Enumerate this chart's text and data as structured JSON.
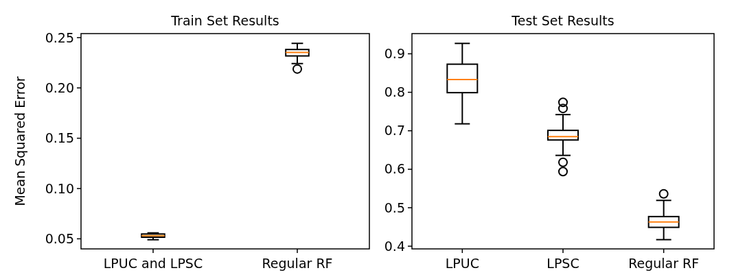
{
  "chart_data": [
    {
      "type": "box",
      "title": "Train Set Results",
      "ylabel": "Mean Squared Error",
      "categories": [
        "LPUC and LPSC",
        "Regular RF"
      ],
      "ylim": [
        0.04,
        0.254
      ],
      "yticks": [
        0.05,
        {
          "value": 0.1,
          "label": "0.10"
        },
        0.15,
        {
          "value": 0.2,
          "label": "0.20"
        },
        0.25
      ],
      "boxes": [
        {
          "low": 0.0491,
          "q1": 0.0516,
          "median": 0.0532,
          "q3": 0.0548,
          "high": 0.0559
        },
        {
          "low": 0.2242,
          "q1": 0.2318,
          "median": 0.2352,
          "q3": 0.2382,
          "high": 0.2443,
          "outliers": [
            0.2188
          ]
        }
      ]
    },
    {
      "type": "box",
      "title": "Test Set Results",
      "categories": [
        "LPUC",
        "LPSC",
        "Regular RF"
      ],
      "ylim": [
        0.393,
        0.9525
      ],
      "yticks": [
        0.4,
        0.5,
        0.6,
        0.7,
        0.8,
        0.9
      ],
      "boxes": [
        {
          "low": 0.718,
          "q1": 0.799,
          "median": 0.833,
          "q3": 0.873,
          "high": 0.927
        },
        {
          "low": 0.636,
          "q1": 0.676,
          "median": 0.685,
          "q3": 0.701,
          "high": 0.742,
          "outliers": [
            0.774,
            0.758,
            0.618,
            0.594
          ]
        },
        {
          "low": 0.417,
          "q1": 0.449,
          "median": 0.463,
          "q3": 0.477,
          "high": 0.519,
          "outliers": [
            0.536
          ]
        }
      ]
    }
  ]
}
